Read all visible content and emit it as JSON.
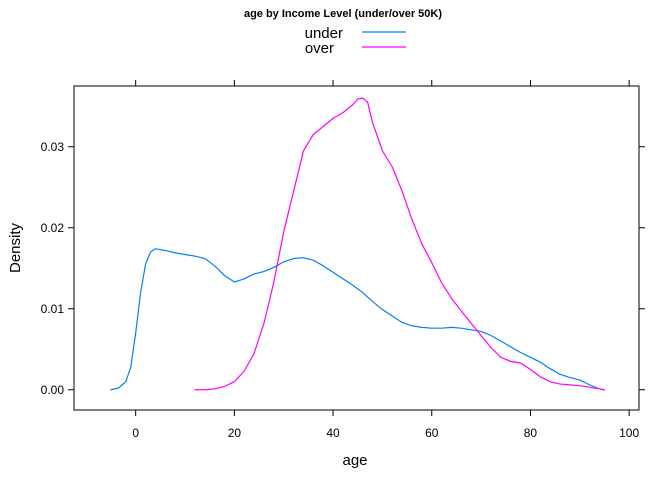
{
  "chart_data": {
    "type": "line",
    "title": "age by Income Level (under/over 50K)",
    "xlabel": "age",
    "ylabel": "Density",
    "xlim": [
      -12.5,
      102.0
    ],
    "ylim": [
      -0.0025,
      0.0375
    ],
    "x_ticks": [
      0,
      20,
      40,
      60,
      80,
      100
    ],
    "y_ticks": [
      0.0,
      0.01,
      0.02,
      0.03
    ],
    "x_tick_labels": [
      "0",
      "20",
      "40",
      "60",
      "80",
      "100"
    ],
    "y_tick_labels": [
      "0.00",
      "0.01",
      "0.02",
      "0.03"
    ],
    "grid": false,
    "legend_position": "top",
    "series": [
      {
        "name": "under",
        "color": "#0080ff",
        "x": [
          -5,
          -3.5,
          -2,
          -1,
          0,
          1,
          2,
          3,
          4,
          6,
          8,
          10,
          12,
          14,
          16,
          18,
          20,
          22,
          24,
          26,
          28,
          30,
          32,
          34,
          36,
          38,
          40,
          42,
          44,
          46,
          48,
          50,
          52,
          54,
          56,
          58,
          60,
          62,
          64,
          66,
          68,
          70,
          72,
          74,
          76,
          78,
          80,
          82,
          84,
          86,
          88,
          90,
          92,
          94,
          95
        ],
        "y": [
          0.0,
          0.0002,
          0.001,
          0.0028,
          0.007,
          0.012,
          0.0155,
          0.017,
          0.0174,
          0.0172,
          0.0169,
          0.0167,
          0.0165,
          0.0162,
          0.0153,
          0.0141,
          0.0133,
          0.0137,
          0.0143,
          0.0146,
          0.0151,
          0.0158,
          0.0162,
          0.0163,
          0.016,
          0.0153,
          0.0145,
          0.0137,
          0.0129,
          0.012,
          0.0109,
          0.0099,
          0.0091,
          0.0083,
          0.0079,
          0.0077,
          0.0076,
          0.0076,
          0.0077,
          0.0076,
          0.0074,
          0.0072,
          0.0067,
          0.006,
          0.0053,
          0.0046,
          0.004,
          0.0034,
          0.0026,
          0.0019,
          0.0015,
          0.0012,
          0.0006,
          0.0001,
          0.0
        ]
      },
      {
        "name": "over",
        "color": "#ff00ff",
        "x": [
          12,
          14,
          16,
          18,
          20,
          22,
          24,
          26,
          28,
          30,
          32,
          34,
          36,
          38,
          40,
          42,
          44,
          45,
          46,
          47,
          48,
          50,
          52,
          54,
          56,
          58,
          60,
          62,
          64,
          66,
          68,
          70,
          72,
          74,
          76,
          78,
          80,
          82,
          84,
          86,
          88,
          90,
          92,
          94,
          95
        ],
        "y": [
          0.0,
          0.0,
          0.0001,
          0.0004,
          0.001,
          0.0023,
          0.0045,
          0.0082,
          0.0133,
          0.0195,
          0.0245,
          0.0295,
          0.0315,
          0.0325,
          0.0335,
          0.0342,
          0.0352,
          0.0359,
          0.036,
          0.0355,
          0.033,
          0.0295,
          0.0275,
          0.0245,
          0.021,
          0.018,
          0.0157,
          0.0132,
          0.0113,
          0.0097,
          0.0082,
          0.0067,
          0.0052,
          0.004,
          0.0035,
          0.0033,
          0.0025,
          0.0016,
          0.001,
          0.0007,
          0.0006,
          0.0005,
          0.0003,
          0.0001,
          0.0
        ]
      }
    ]
  }
}
